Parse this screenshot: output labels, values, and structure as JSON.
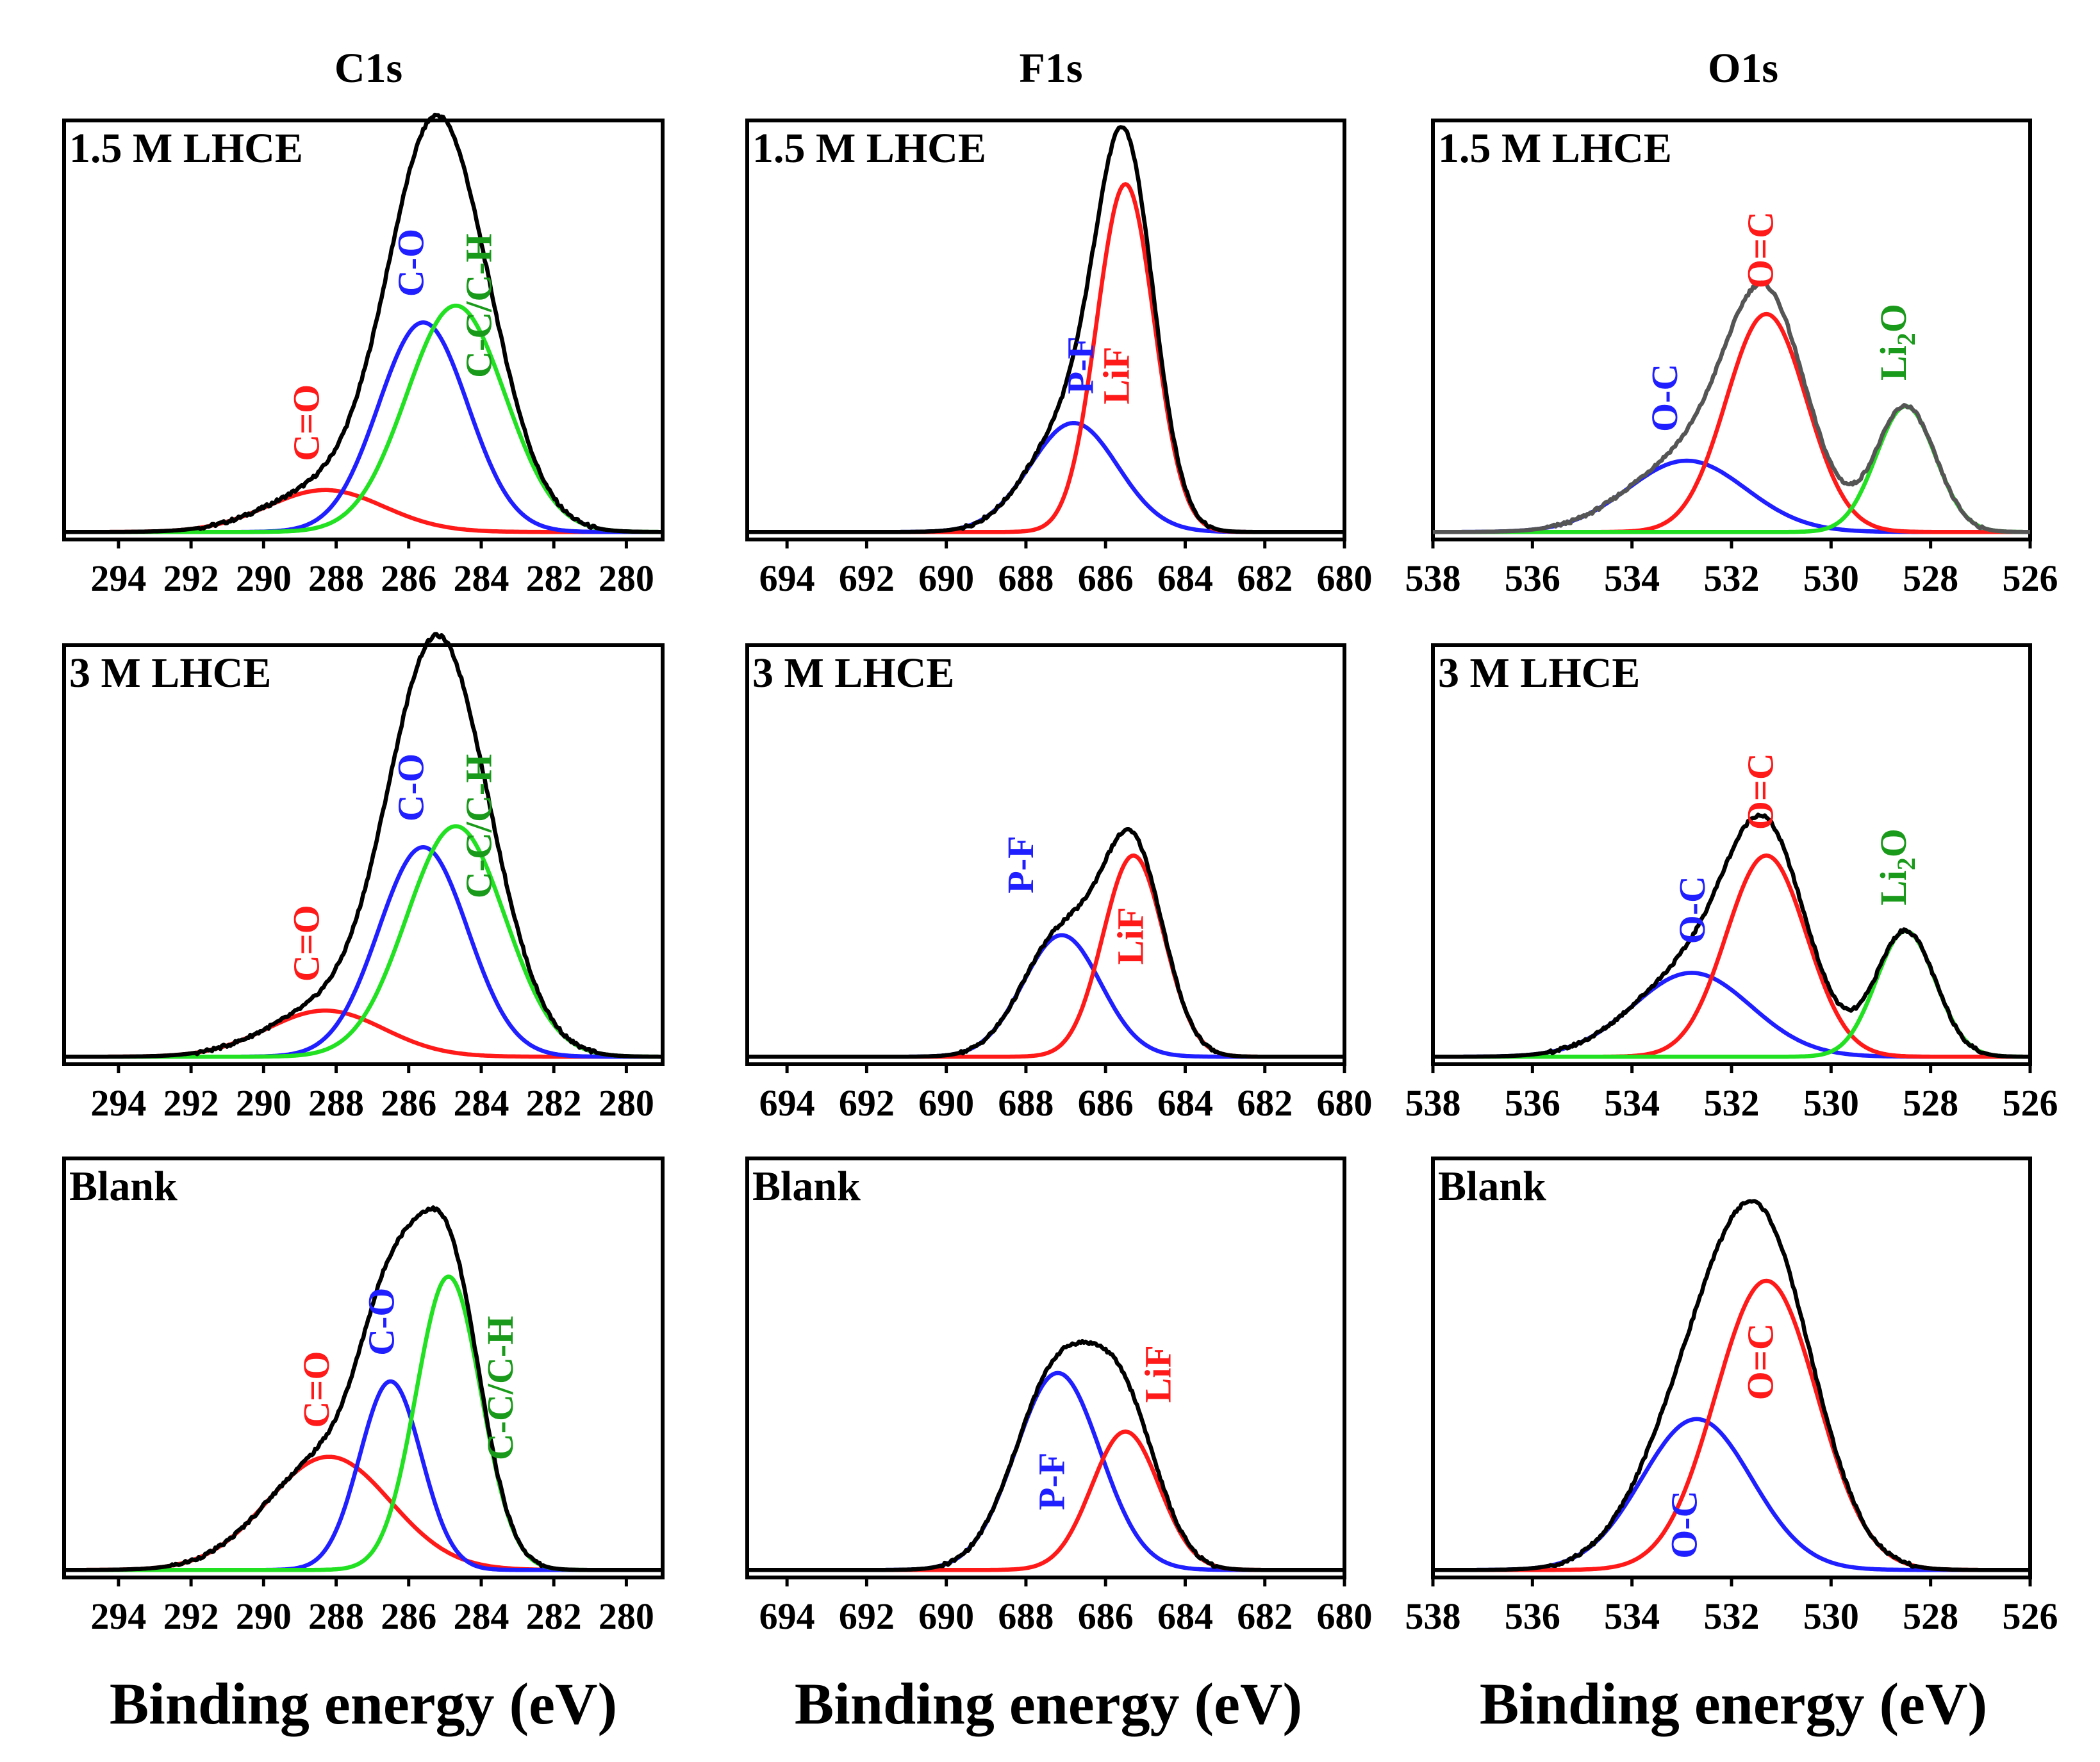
{
  "figure": {
    "xlabel": "Binding energy (eV)",
    "colors": {
      "envelope": "#000000",
      "envelope_alt": "#555555",
      "red": "#ff1a1a",
      "blue": "#1f1fff",
      "green": "#22e022",
      "label_green": "#1a9a1a"
    }
  },
  "chart_data": [
    {
      "type": "line",
      "title": "C1s",
      "row": 0,
      "col": 0,
      "sample": "1.5 M LHCE",
      "xlim": [
        295.5,
        279
      ],
      "ylim": [
        0,
        1
      ],
      "ticks": [
        294,
        292,
        290,
        288,
        286,
        284,
        282,
        280
      ],
      "tick_labels": [
        "294",
        "292",
        "290",
        "288",
        "286",
        "284",
        "282",
        "280"
      ],
      "envelope_color": "#000000",
      "peaks": [
        {
          "label": "C=O",
          "color": "#ff1a1a",
          "center": 288.3,
          "height": 0.1,
          "fwhm": 3.8
        },
        {
          "label": "C-O",
          "color": "#1f1fff",
          "center": 285.6,
          "height": 0.5,
          "fwhm": 2.9
        },
        {
          "label": "C-C/C-H",
          "color": "#22e022",
          "center": 284.7,
          "height": 0.54,
          "fwhm": 3.2
        }
      ]
    },
    {
      "type": "line",
      "title": "F1s",
      "row": 0,
      "col": 1,
      "sample": "1.5 M LHCE",
      "xlim": [
        695,
        680
      ],
      "ylim": [
        0,
        1
      ],
      "ticks": [
        694,
        692,
        690,
        688,
        686,
        684,
        682,
        680
      ],
      "tick_labels": [
        "694",
        "692",
        "690",
        "688",
        "686",
        "684",
        "682",
        "680"
      ],
      "envelope_color": "#000000",
      "peaks": [
        {
          "label": "P-F",
          "color": "#1f1fff",
          "center": 686.8,
          "height": 0.26,
          "fwhm": 2.6
        },
        {
          "label": "LiF",
          "color": "#ff1a1a",
          "center": 685.5,
          "height": 0.83,
          "fwhm": 1.7
        }
      ]
    },
    {
      "type": "line",
      "title": "O1s",
      "row": 0,
      "col": 2,
      "sample": "1.5 M LHCE",
      "xlim": [
        538,
        526
      ],
      "ylim": [
        0,
        1
      ],
      "ticks": [
        538,
        536,
        534,
        532,
        530,
        528,
        526
      ],
      "tick_labels": [
        "538",
        "536",
        "534",
        "532",
        "530",
        "528",
        "526"
      ],
      "envelope_color": "#555555",
      "peaks": [
        {
          "label": "O-C",
          "color": "#1f1fff",
          "center": 532.9,
          "height": 0.17,
          "fwhm": 2.8
        },
        {
          "label": "O=C",
          "color": "#ff1a1a",
          "center": 531.3,
          "height": 0.52,
          "fwhm": 1.9
        },
        {
          "label": "Li2O",
          "color": "#22e022",
          "center": 528.5,
          "height": 0.3,
          "fwhm": 1.4
        }
      ]
    },
    {
      "type": "line",
      "title": "C1s",
      "row": 1,
      "col": 0,
      "sample": "3 M LHCE",
      "xlim": [
        295.5,
        279
      ],
      "ylim": [
        0,
        1
      ],
      "ticks": [
        294,
        292,
        290,
        288,
        286,
        284,
        282,
        280
      ],
      "tick_labels": [
        "294",
        "292",
        "290",
        "288",
        "286",
        "284",
        "282",
        "280"
      ],
      "envelope_color": "#000000",
      "peaks": [
        {
          "label": "C=O",
          "color": "#ff1a1a",
          "center": 288.3,
          "height": 0.11,
          "fwhm": 3.8
        },
        {
          "label": "C-O",
          "color": "#1f1fff",
          "center": 285.6,
          "height": 0.5,
          "fwhm": 2.9
        },
        {
          "label": "C-C/C-H",
          "color": "#22e022",
          "center": 284.7,
          "height": 0.55,
          "fwhm": 3.2
        }
      ]
    },
    {
      "type": "line",
      "title": "F1s",
      "row": 1,
      "col": 1,
      "sample": "3 M LHCE",
      "xlim": [
        695,
        680
      ],
      "ylim": [
        0,
        1
      ],
      "ticks": [
        694,
        692,
        690,
        688,
        686,
        684,
        682,
        680
      ],
      "tick_labels": [
        "694",
        "692",
        "690",
        "688",
        "686",
        "684",
        "682",
        "680"
      ],
      "envelope_color": "#000000",
      "peaks": [
        {
          "label": "P-F",
          "color": "#1f1fff",
          "center": 687.1,
          "height": 0.29,
          "fwhm": 2.3
        },
        {
          "label": "LiF",
          "color": "#ff1a1a",
          "center": 685.3,
          "height": 0.48,
          "fwhm": 1.8
        }
      ]
    },
    {
      "type": "line",
      "title": "O1s",
      "row": 1,
      "col": 2,
      "sample": "3 M LHCE",
      "xlim": [
        538,
        526
      ],
      "ylim": [
        0,
        1
      ],
      "ticks": [
        538,
        536,
        534,
        532,
        530,
        528,
        526
      ],
      "tick_labels": [
        "538",
        "536",
        "534",
        "532",
        "530",
        "528",
        "526"
      ],
      "envelope_color": "#000000",
      "peaks": [
        {
          "label": "O-C",
          "color": "#1f1fff",
          "center": 532.8,
          "height": 0.2,
          "fwhm": 2.8
        },
        {
          "label": "O=C",
          "color": "#ff1a1a",
          "center": 531.3,
          "height": 0.48,
          "fwhm": 1.9
        },
        {
          "label": "Li2O",
          "color": "#22e022",
          "center": 528.5,
          "height": 0.3,
          "fwhm": 1.4
        }
      ]
    },
    {
      "type": "line",
      "title": "C1s",
      "row": 2,
      "col": 0,
      "sample": "Blank",
      "xlim": [
        295.5,
        279
      ],
      "ylim": [
        0,
        1
      ],
      "ticks": [
        294,
        292,
        290,
        288,
        286,
        284,
        282,
        280
      ],
      "tick_labels": [
        "294",
        "292",
        "290",
        "288",
        "286",
        "284",
        "282",
        "280"
      ],
      "envelope_color": "#000000",
      "peaks": [
        {
          "label": "C=O",
          "color": "#ff1a1a",
          "center": 288.2,
          "height": 0.27,
          "fwhm": 4.0
        },
        {
          "label": "C-O",
          "color": "#1f1fff",
          "center": 286.5,
          "height": 0.45,
          "fwhm": 2.0
        },
        {
          "label": "C-C/C-H",
          "color": "#22e022",
          "center": 284.9,
          "height": 0.7,
          "fwhm": 2.1
        }
      ]
    },
    {
      "type": "line",
      "title": "F1s",
      "row": 2,
      "col": 1,
      "sample": "Blank",
      "xlim": [
        695,
        680
      ],
      "ylim": [
        0,
        1
      ],
      "ticks": [
        694,
        692,
        690,
        688,
        686,
        684,
        682,
        680
      ],
      "tick_labels": [
        "694",
        "692",
        "690",
        "688",
        "686",
        "684",
        "682",
        "680"
      ],
      "envelope_color": "#000000",
      "peaks": [
        {
          "label": "P-F",
          "color": "#1f1fff",
          "center": 687.2,
          "height": 0.47,
          "fwhm": 2.5
        },
        {
          "label": "LiF",
          "color": "#ff1a1a",
          "center": 685.5,
          "height": 0.33,
          "fwhm": 2.0
        }
      ]
    },
    {
      "type": "line",
      "title": "O1s",
      "row": 2,
      "col": 2,
      "sample": "Blank",
      "xlim": [
        538,
        526
      ],
      "ylim": [
        0,
        1
      ],
      "ticks": [
        538,
        536,
        534,
        532,
        530,
        528,
        526
      ],
      "tick_labels": [
        "538",
        "536",
        "534",
        "532",
        "530",
        "528",
        "526"
      ],
      "envelope_color": "#000000",
      "peaks": [
        {
          "label": "O-C",
          "color": "#1f1fff",
          "center": 532.7,
          "height": 0.36,
          "fwhm": 2.6
        },
        {
          "label": "O=C",
          "color": "#ff1a1a",
          "center": 531.3,
          "height": 0.69,
          "fwhm": 2.4
        }
      ]
    }
  ]
}
